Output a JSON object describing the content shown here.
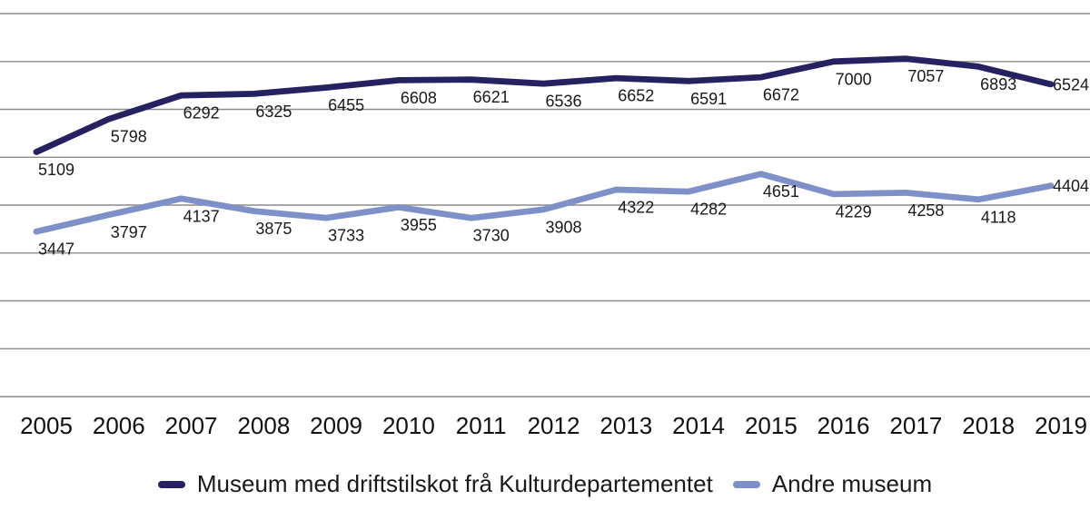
{
  "chart_data": {
    "type": "line",
    "x_labels": [
      "2005",
      "2006",
      "2007",
      "2008",
      "2009",
      "2010",
      "2011",
      "2012",
      "2013",
      "2014",
      "2015",
      "2016",
      "2017",
      "2018",
      "2019"
    ],
    "series": [
      {
        "name": "Museum med driftstilskot frå Kulturdepartementet",
        "color": "#262262",
        "values": [
          5109,
          5798,
          6292,
          6325,
          6455,
          6608,
          6621,
          6536,
          6652,
          6591,
          6672,
          7000,
          7057,
          6893,
          6524
        ]
      },
      {
        "name": "Andre museum",
        "color": "#7e90c8",
        "values": [
          3447,
          3797,
          4137,
          3875,
          3733,
          3955,
          3730,
          3908,
          4322,
          4282,
          4651,
          4229,
          4258,
          4118,
          4404
        ]
      }
    ],
    "title": "",
    "xlabel": "",
    "ylabel": "",
    "ylim": [
      0,
      8000
    ],
    "y_gridline_step": 1000,
    "grid": "on",
    "y_tick_labels_visible": false,
    "data_labels_visible": true,
    "legend_position": "bottom",
    "grid_color": "#8c8c8c",
    "background_color": "#ffffff"
  }
}
